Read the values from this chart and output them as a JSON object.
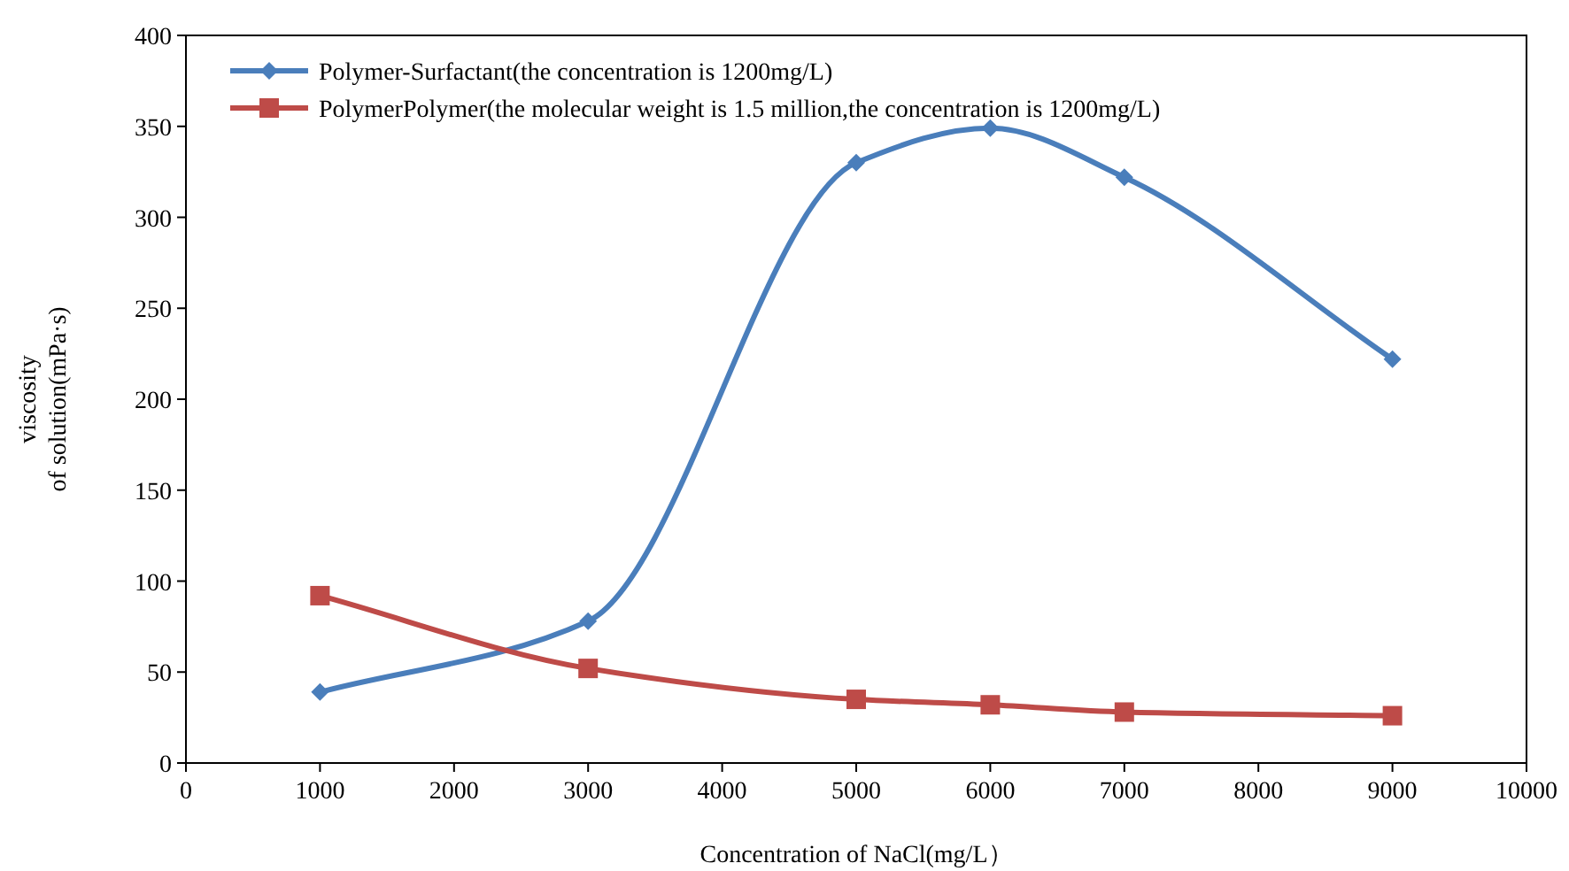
{
  "chart_data": {
    "type": "line",
    "xlabel": "Concentration of  NaCl(mg/L）",
    "ylabel": "viscosity\nof solution(mPa·s)",
    "xlim": [
      0,
      10000
    ],
    "xticks": [
      0,
      1000,
      2000,
      3000,
      4000,
      5000,
      6000,
      7000,
      8000,
      9000,
      10000
    ],
    "ylim": [
      0,
      400
    ],
    "yticks": [
      0,
      50,
      100,
      150,
      200,
      250,
      300,
      350,
      400
    ],
    "x": [
      1000,
      3000,
      5000,
      6000,
      7000,
      9000
    ],
    "series": [
      {
        "name": "Polymer-Surfactant(the concentration is 1200mg/L)",
        "color": "#4a7ebb",
        "marker": "diamond",
        "values": [
          39,
          78,
          330,
          349,
          322,
          222
        ]
      },
      {
        "name": "PolymerPolymer(the molecular weight  is 1.5 million,the concentration is 1200mg/L)",
        "color": "#be4b48",
        "marker": "square",
        "values": [
          92,
          52,
          35,
          32,
          28,
          26
        ]
      }
    ],
    "grid": false,
    "legend": "top left",
    "line_style": "solid"
  }
}
